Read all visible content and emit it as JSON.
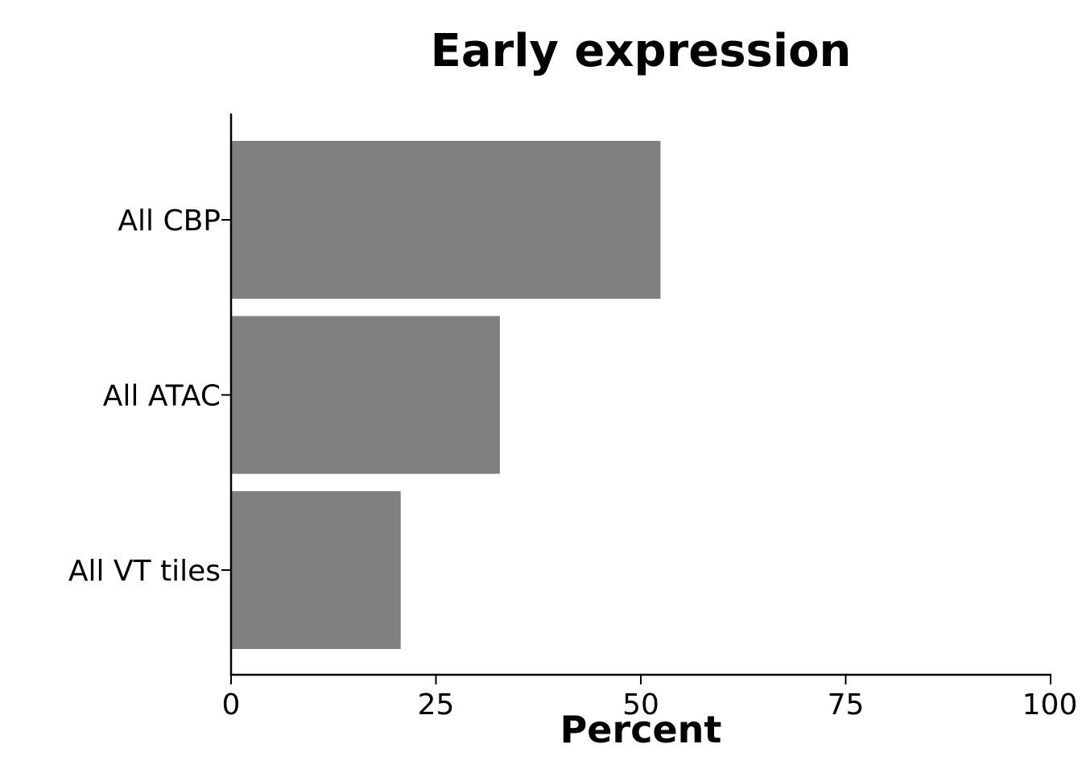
{
  "chart_data": {
    "type": "bar",
    "orientation": "horizontal",
    "title": "Early expression",
    "xlabel": "Percent",
    "ylabel": "",
    "categories": [
      "All CBP",
      "All ATAC",
      "All VT tiles"
    ],
    "values": [
      52.4,
      32.8,
      20.7
    ],
    "xlim": [
      0,
      100
    ],
    "xticks": [
      "0",
      "25",
      "50",
      "75",
      "100"
    ],
    "xtick_values": [
      0,
      25,
      50,
      75,
      100
    ],
    "grid": false,
    "legend": "none",
    "colors": {
      "bar": "#808080",
      "axis": "#000000",
      "background": "#ffffff"
    }
  }
}
